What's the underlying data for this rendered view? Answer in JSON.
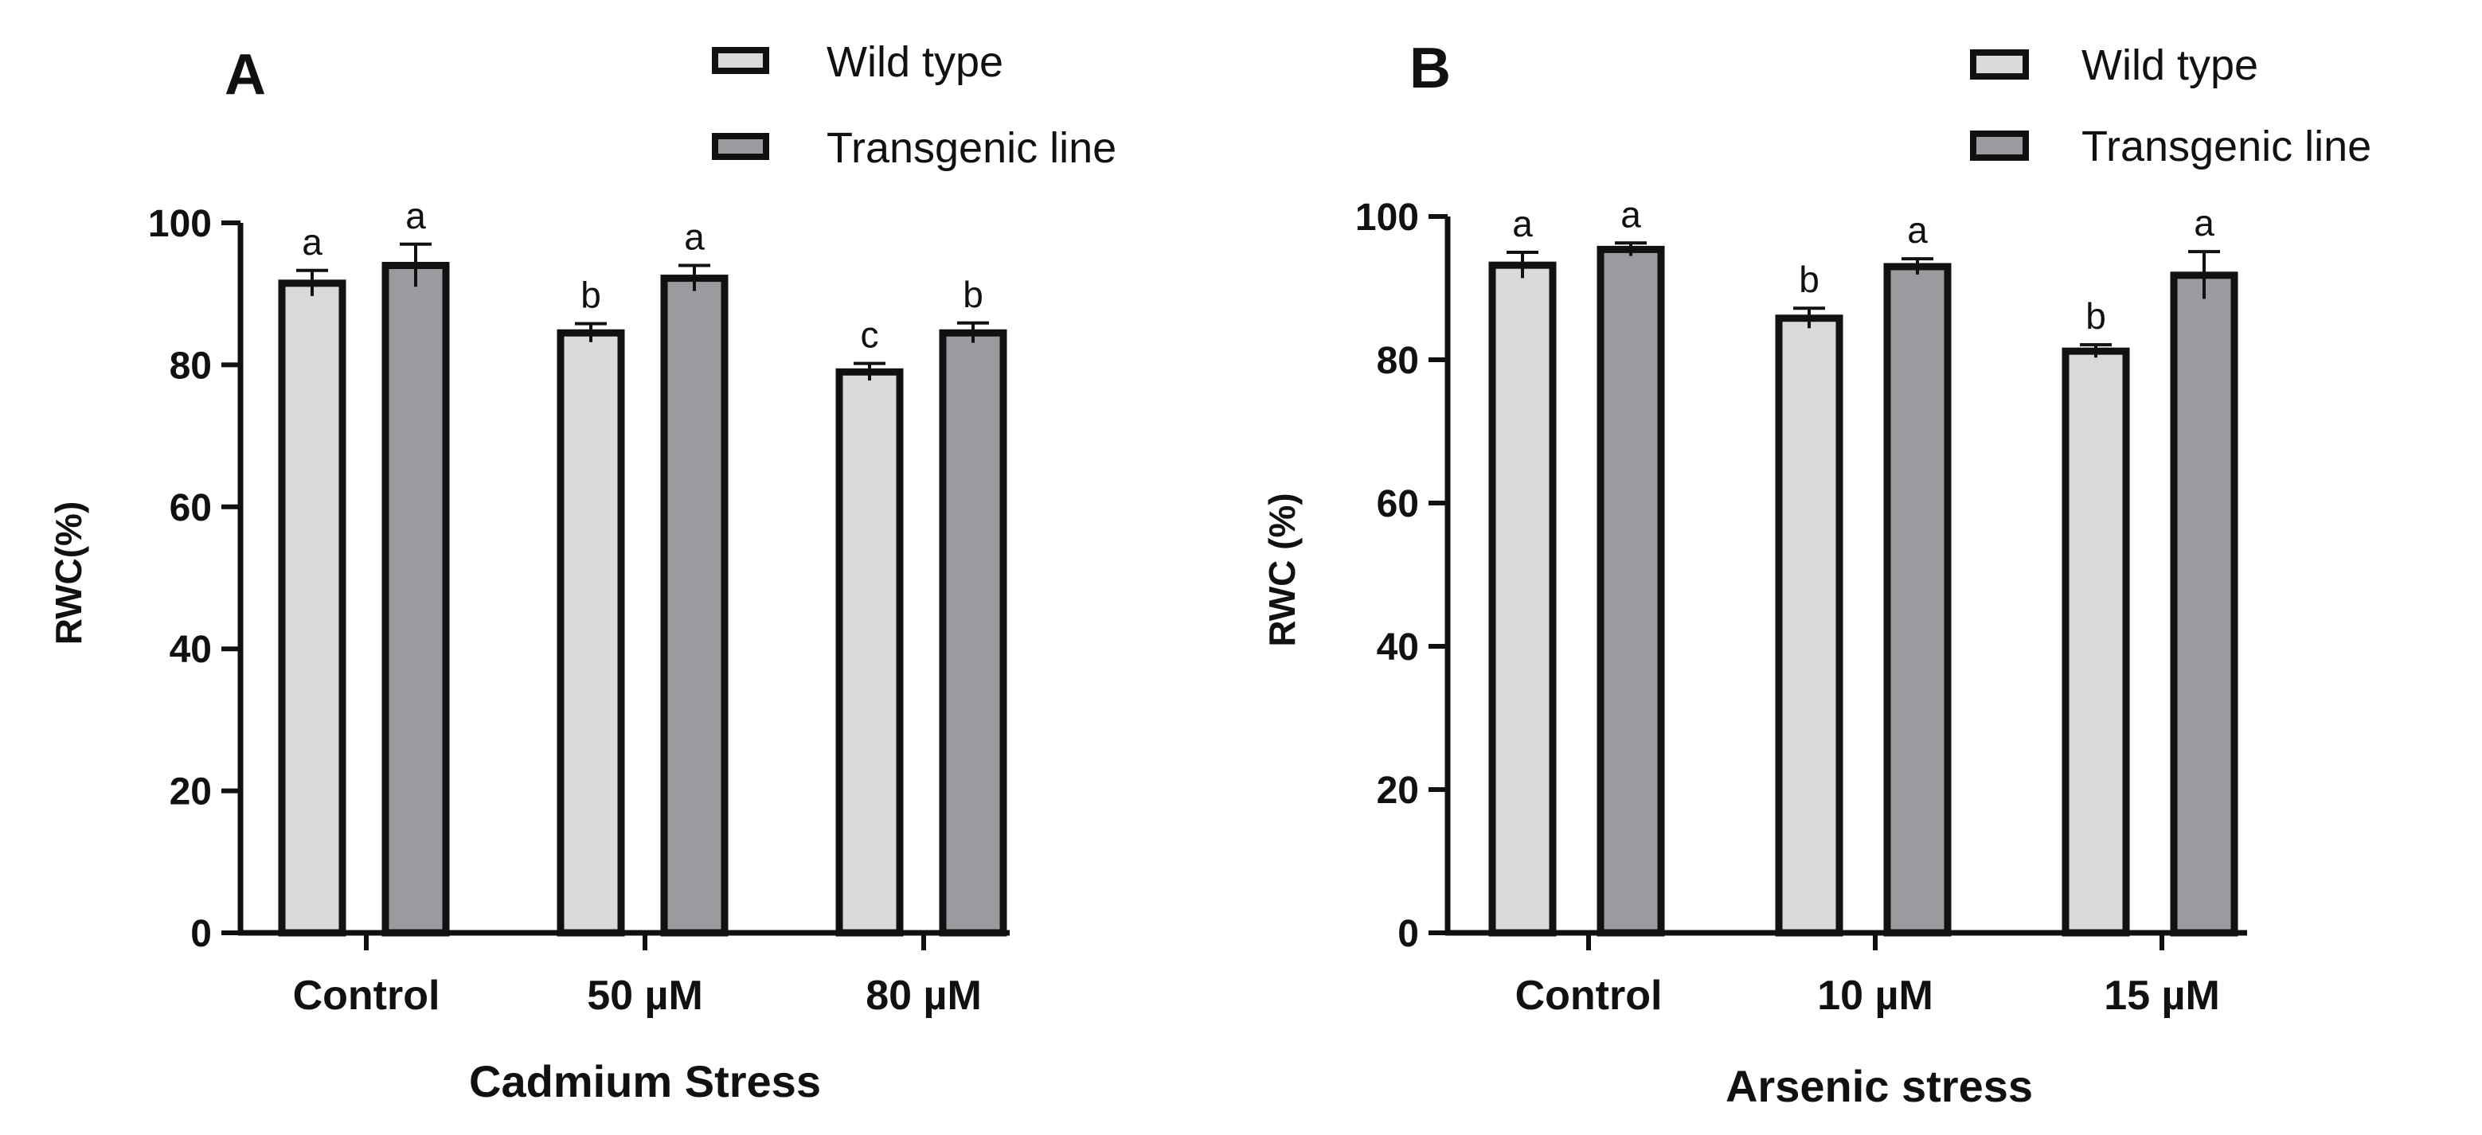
{
  "chart_data": [
    {
      "type": "bar",
      "panel_label": "A",
      "title": "",
      "xlabel": "Cadmium Stress",
      "ylabel": "RWC(%)",
      "ylim": [
        0,
        100
      ],
      "yticks": [
        "0",
        "20",
        "40",
        "60",
        "80",
        "100"
      ],
      "legend_position": "top-right",
      "categories": [
        "Control",
        "50 µM",
        "80 µM"
      ],
      "series": [
        {
          "name": "Wild type",
          "color": "#d9d9d9",
          "values": [
            91.5,
            84.5,
            79.0
          ],
          "errors": [
            1.8,
            1.3,
            1.2
          ],
          "letters": [
            "a",
            "b",
            "c"
          ]
        },
        {
          "name": "Transgenic line",
          "color": "#9b9b9f",
          "values": [
            94.0,
            92.2,
            84.5
          ],
          "errors": [
            3.0,
            1.8,
            1.4
          ],
          "letters": [
            "a",
            "a",
            "b"
          ]
        }
      ]
    },
    {
      "type": "bar",
      "panel_label": "B",
      "title": "",
      "xlabel": "Arsenic stress",
      "ylabel": "RWC (%)",
      "ylim": [
        0,
        100
      ],
      "yticks": [
        "0",
        "20",
        "40",
        "60",
        "80",
        "100"
      ],
      "legend_position": "top-right",
      "categories": [
        "Control",
        "10 µM",
        "15 µM"
      ],
      "series": [
        {
          "name": "Wild type",
          "color": "#d9d9d9",
          "values": [
            93.2,
            85.8,
            81.2
          ],
          "errors": [
            1.8,
            1.4,
            0.9
          ],
          "letters": [
            "a",
            "b",
            "b"
          ]
        },
        {
          "name": "Transgenic line",
          "color": "#9b9b9f",
          "values": [
            95.4,
            93.0,
            91.8
          ],
          "errors": [
            0.9,
            1.1,
            3.3
          ],
          "letters": [
            "a",
            "a",
            "a"
          ]
        }
      ]
    }
  ]
}
